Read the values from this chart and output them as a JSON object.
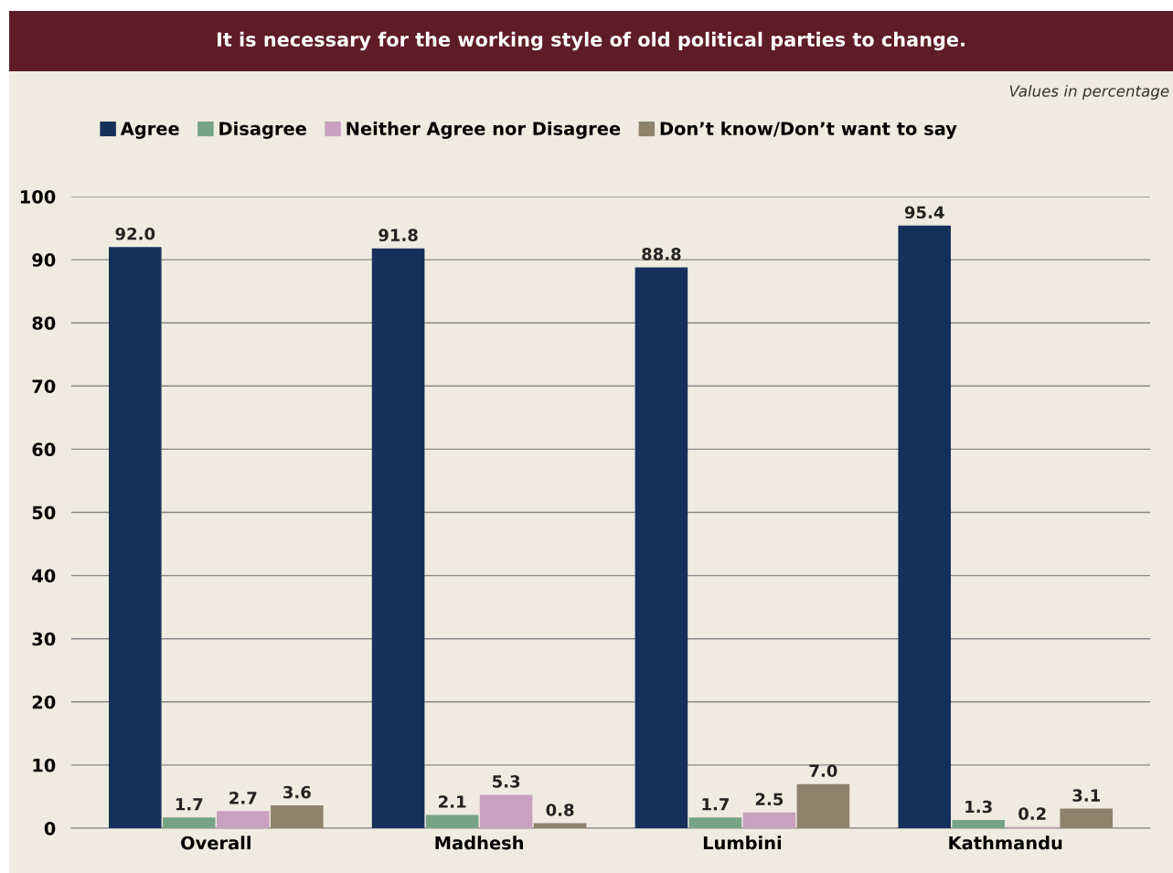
{
  "chart_data": {
    "type": "bar",
    "title": "It is necessary for the working style of old political parties to change.",
    "annotations": [
      "Values in percentage"
    ],
    "categories": [
      "Overall",
      "Madhesh",
      "Lumbini",
      "Kathmandu"
    ],
    "series": [
      {
        "name": "Agree",
        "color": "#15305a",
        "values": [
          92.0,
          91.8,
          88.8,
          95.4
        ],
        "value_labels": [
          "92.0",
          "91.8",
          "88.8",
          "95.4"
        ]
      },
      {
        "name": "Disagree",
        "color": "#76a383",
        "values": [
          1.7,
          2.1,
          1.7,
          1.3
        ],
        "value_labels": [
          "1.7",
          "2.1",
          "1.7",
          "1.3"
        ]
      },
      {
        "name": "Neither Agree nor Disagree",
        "color": "#c9a0c0",
        "values": [
          2.7,
          5.3,
          2.5,
          0.2
        ],
        "value_labels": [
          "2.7",
          "5.3",
          "2.5",
          "0.2"
        ]
      },
      {
        "name": "Don’t know/Don’t want to say",
        "color": "#8e826c",
        "values": [
          3.6,
          0.8,
          7.0,
          3.1
        ],
        "value_labels": [
          "3.6",
          "0.8",
          "7.0",
          "3.1"
        ]
      }
    ],
    "ylim": [
      0,
      100
    ],
    "yticks": [
      0,
      10,
      20,
      30,
      40,
      50,
      60,
      70,
      80,
      90,
      100
    ],
    "grid": "y",
    "legend": "top left"
  }
}
